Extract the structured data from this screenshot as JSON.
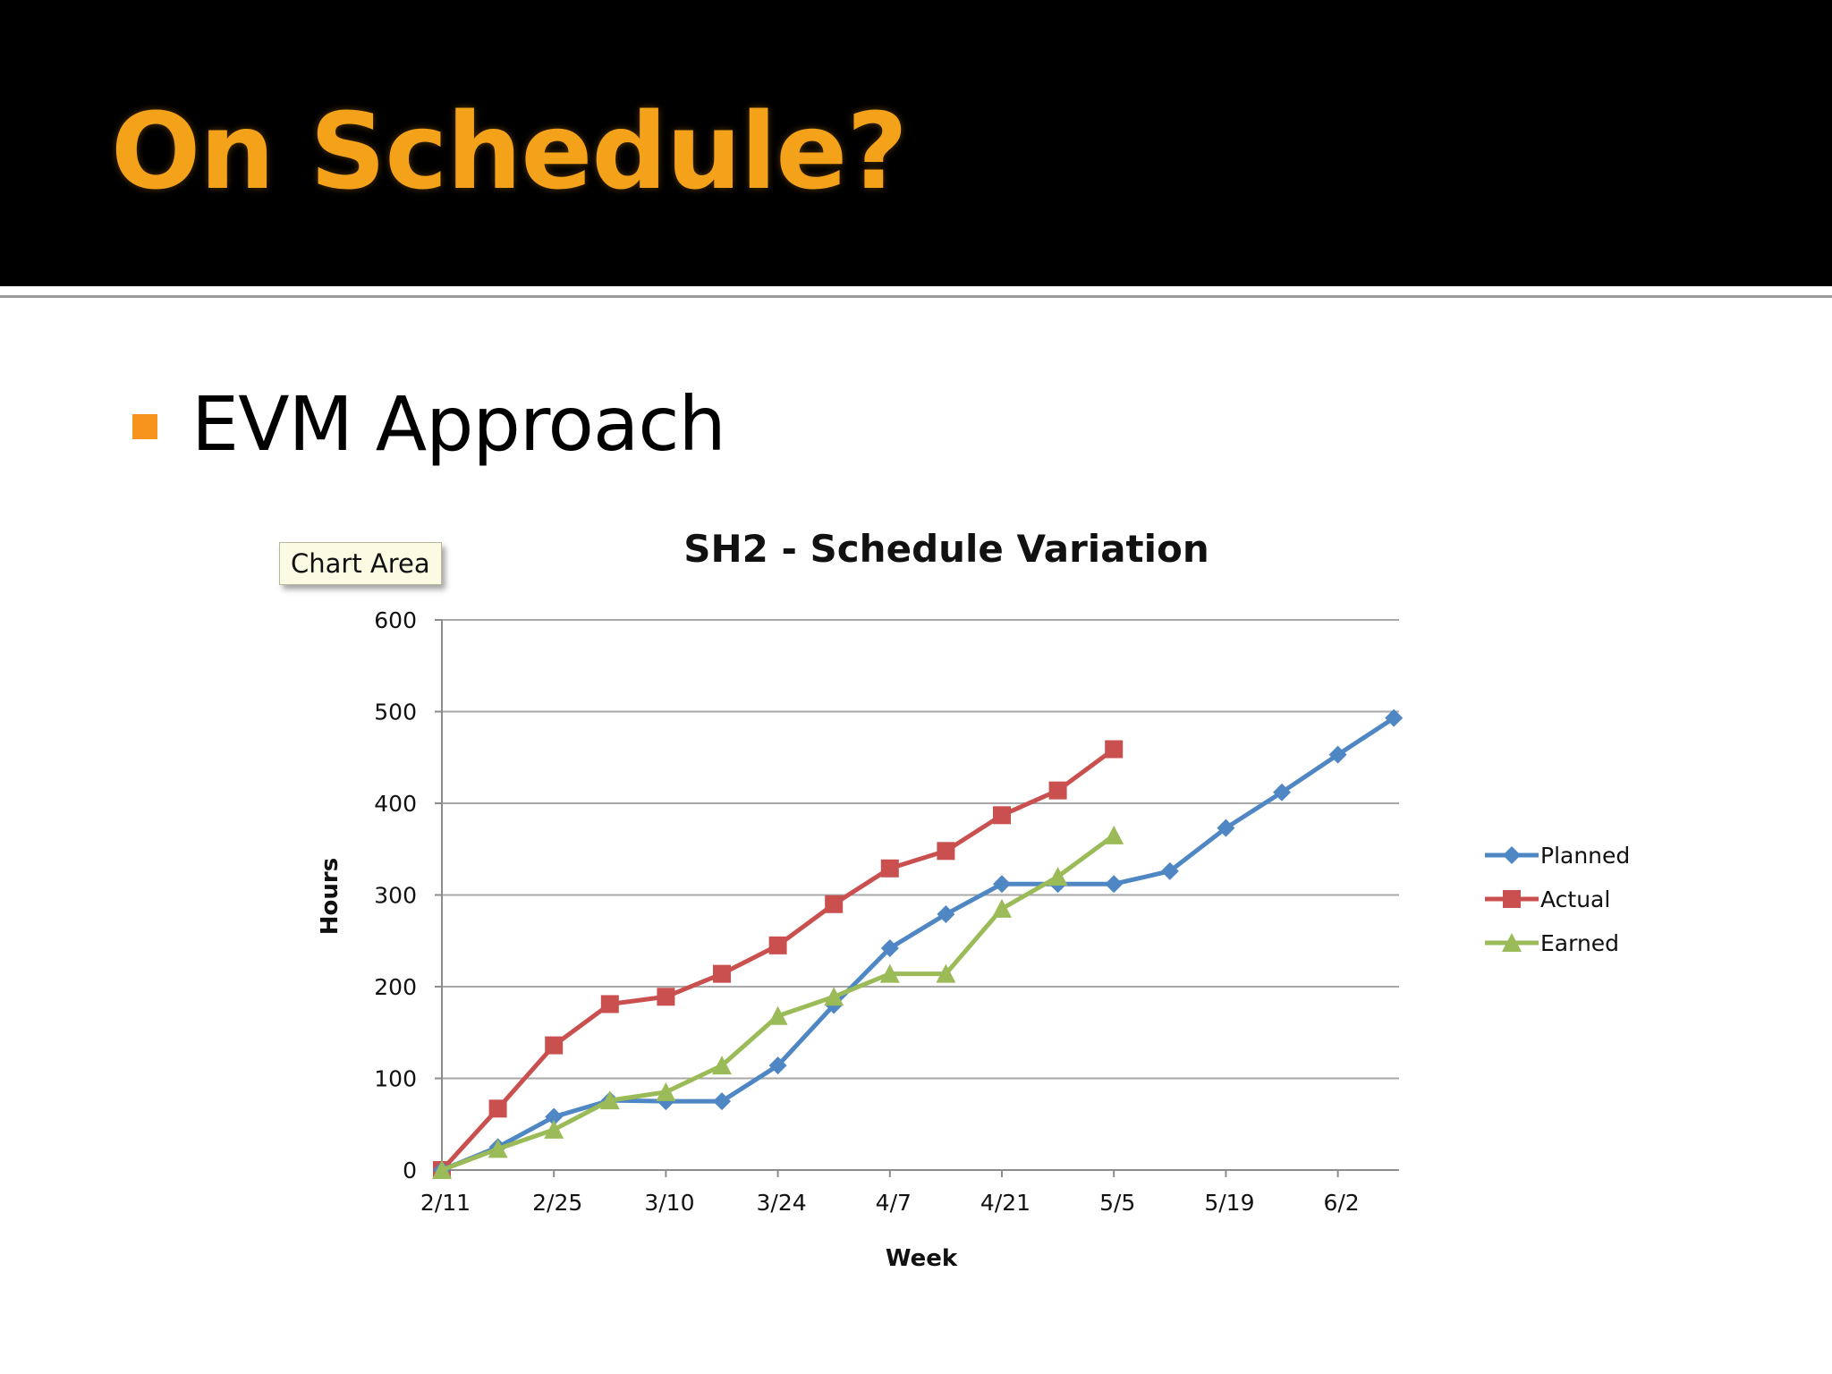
{
  "slide": {
    "title": "On Schedule?",
    "bullet": "EVM Approach",
    "tooltip": "Chart Area",
    "colors": {
      "title": "#f5a21b",
      "bullet": "#f7941d",
      "header_bg": "#000000"
    }
  },
  "chart_data": {
    "type": "line",
    "title": "SH2 - Schedule Variation",
    "xlabel": "Week",
    "ylabel": "Hours",
    "x_tick_labels": [
      "2/11",
      "2/25",
      "3/10",
      "3/24",
      "4/7",
      "4/21",
      "5/5",
      "5/19",
      "6/2"
    ],
    "x_tick_positions": [
      0,
      2,
      4,
      6,
      8,
      10,
      12,
      14,
      16
    ],
    "xlim": [
      0,
      17
    ],
    "ylim": [
      0,
      600
    ],
    "y_ticks": [
      0,
      100,
      200,
      300,
      400,
      500,
      600
    ],
    "grid": "horizontal",
    "legend_position": "right",
    "series": [
      {
        "name": "Planned",
        "color": "#4f87c4",
        "marker": "diamond",
        "x": [
          0,
          1,
          2,
          3,
          4,
          5,
          6,
          7,
          8,
          9,
          10,
          11,
          12,
          13,
          14,
          15,
          16,
          17
        ],
        "values": [
          0,
          25,
          58,
          76,
          75,
          75,
          114,
          180,
          242,
          279,
          312,
          312,
          312,
          326,
          373,
          412,
          453,
          493
        ]
      },
      {
        "name": "Actual",
        "color": "#c9504f",
        "marker": "square",
        "x": [
          0,
          1,
          2,
          3,
          4,
          5,
          6,
          7,
          8,
          9,
          10,
          11,
          12
        ],
        "values": [
          0,
          67,
          136,
          181,
          189,
          214,
          245,
          290,
          329,
          348,
          387,
          414,
          459
        ]
      },
      {
        "name": "Earned",
        "color": "#9bbb59",
        "marker": "triangle",
        "x": [
          0,
          1,
          2,
          3,
          4,
          5,
          6,
          7,
          8,
          9,
          10,
          11,
          12
        ],
        "values": [
          0,
          23,
          44,
          76,
          85,
          114,
          168,
          189,
          214,
          214,
          285,
          320,
          365
        ]
      }
    ]
  }
}
